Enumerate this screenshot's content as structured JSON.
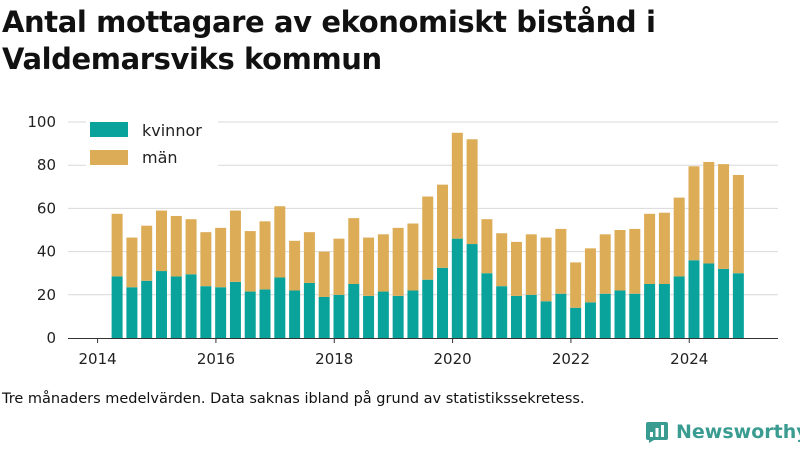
{
  "title": "Antal mottagare av ekonomiskt bistånd i Valdemarsviks kommun",
  "note": "Tre månaders medelvärden. Data saknas ibland på grund av statistikssekretess.",
  "brand": {
    "name": "Newsworthy",
    "icon": "newsworthy-logo-icon"
  },
  "colors": {
    "kvinnor": "#0aa39c",
    "man": "#dcac57",
    "grid": "#d9d9d9",
    "axis": "#333333"
  },
  "chart_data": {
    "type": "bar",
    "stacked": true,
    "grid": true,
    "legend_position": "top-left",
    "ylim": [
      0,
      100
    ],
    "yticks": [
      0,
      20,
      40,
      60,
      80,
      100
    ],
    "xlim": [
      2013.5,
      2025.5
    ],
    "xticks": [
      2014,
      2016,
      2018,
      2020,
      2022,
      2024
    ],
    "x": [
      2014.33,
      2014.58,
      2014.83,
      2015.08,
      2015.33,
      2015.58,
      2015.83,
      2016.08,
      2016.33,
      2016.58,
      2016.83,
      2017.08,
      2017.33,
      2017.58,
      2017.83,
      2018.08,
      2018.33,
      2018.58,
      2018.83,
      2019.08,
      2019.33,
      2019.58,
      2019.83,
      2020.08,
      2020.33,
      2020.58,
      2020.83,
      2021.08,
      2021.33,
      2021.58,
      2021.83,
      2022.08,
      2022.33,
      2022.58,
      2022.83,
      2023.08,
      2023.33,
      2023.58,
      2023.83,
      2024.08,
      2024.33,
      2024.58,
      2024.83
    ],
    "series": [
      {
        "name": "kvinnor",
        "values": [
          28.5,
          23.5,
          26.5,
          31,
          28.5,
          29.5,
          24,
          23.5,
          26,
          21.5,
          22.5,
          28,
          22,
          25.5,
          19,
          20,
          25,
          19.5,
          21.5,
          19.5,
          22,
          27,
          32.5,
          46,
          43.5,
          30,
          24,
          19.5,
          20,
          17,
          20.5,
          14,
          16.5,
          20.5,
          22,
          20.5,
          25,
          25,
          28.5,
          36,
          34.5,
          32,
          30
        ]
      },
      {
        "name": "män",
        "values": [
          29,
          23,
          25.5,
          28,
          28,
          25.5,
          25,
          27.5,
          33,
          28,
          31.5,
          33,
          23,
          23.5,
          21,
          26,
          30.5,
          27,
          26.5,
          31.5,
          31,
          38.5,
          38.5,
          49,
          48.5,
          25,
          24.5,
          25,
          28,
          29.5,
          30,
          21,
          25,
          27.5,
          28,
          30,
          32.5,
          33,
          36.5,
          43.5,
          47,
          48.5,
          45.5
        ]
      }
    ]
  }
}
